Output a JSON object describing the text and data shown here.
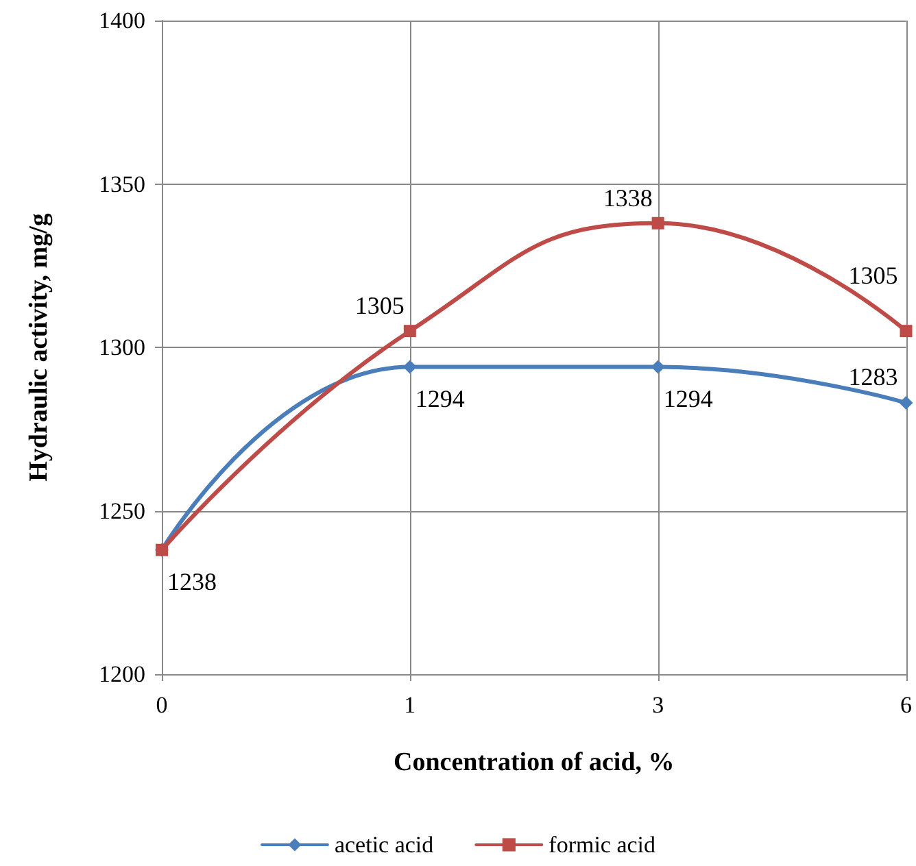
{
  "chart_data": {
    "type": "line",
    "xlabel": "Concentration of acid, %",
    "ylabel": "Hydraulic activity, mg/g",
    "categories": [
      "0",
      "1",
      "3",
      "6"
    ],
    "series": [
      {
        "name": "acetic acid",
        "color": "#4a7ebb",
        "marker": "diamond",
        "values": [
          1238,
          1294,
          1294,
          1283
        ],
        "value_labels": [
          "1238",
          "1294",
          "1294",
          "1283"
        ]
      },
      {
        "name": "formic acid",
        "color": "#be4b48",
        "marker": "square",
        "values": [
          1238,
          1305,
          1338,
          1305
        ],
        "value_labels": [
          null,
          "1305",
          "1338",
          "1305"
        ]
      }
    ],
    "ylim": [
      1200,
      1400
    ],
    "yticks": [
      1200,
      1250,
      1300,
      1350,
      1400
    ],
    "grid": true,
    "legend": "bottom"
  }
}
